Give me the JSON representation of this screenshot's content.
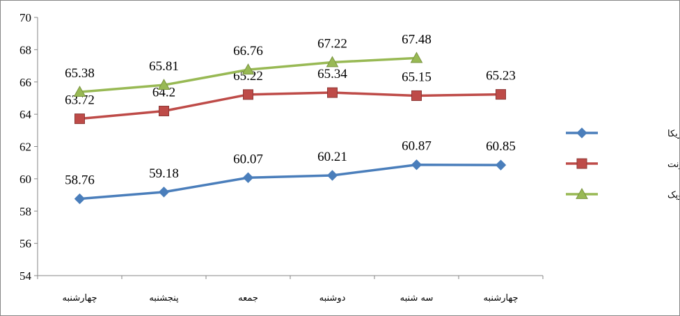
{
  "chart_data": {
    "type": "line",
    "title": "",
    "xlabel": "",
    "ylabel": "",
    "categories": [
      "چهارشنبه",
      "پنجشنبه",
      "جمعه",
      "دوشنبه",
      "سه شنبه",
      "چهارشنبه"
    ],
    "ylim": [
      54,
      70
    ],
    "yticks": [
      54,
      56,
      58,
      60,
      62,
      64,
      66,
      68,
      70
    ],
    "grid": false,
    "legend_position": "right",
    "series": [
      {
        "name": "نفت خام آمریکا",
        "values": [
          58.76,
          59.18,
          60.07,
          60.21,
          60.87,
          60.85
        ],
        "labels": [
          "58.76",
          "59.18",
          "60.07",
          "60.21",
          "60.87",
          "60.85"
        ],
        "color": "#4A7EBB",
        "marker": "diamond"
      },
      {
        "name": "نفت برنت",
        "values": [
          63.72,
          64.2,
          65.22,
          65.34,
          65.15,
          65.23
        ],
        "labels": [
          "63.72",
          "64.2",
          "65.22",
          "65.34",
          "65.15",
          "65.23"
        ],
        "color": "#BE4B48",
        "marker": "square"
      },
      {
        "name": "نفت اوپک",
        "values": [
          65.38,
          65.81,
          66.76,
          67.22,
          67.48,
          null
        ],
        "labels": [
          "65.38",
          "65.81",
          "66.76",
          "67.22",
          "67.48",
          null
        ],
        "color": "#98B954",
        "marker": "triangle"
      }
    ]
  }
}
